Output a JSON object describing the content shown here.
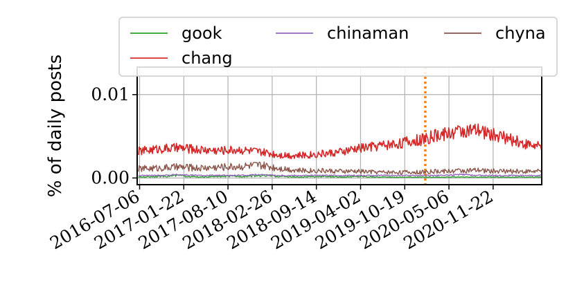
{
  "chart_data": {
    "type": "line",
    "title": "",
    "xlabel": "",
    "ylabel": "% of daily posts",
    "x_range": [
      "2016-06-25",
      "2021-06-30"
    ],
    "ylim": [
      -0.0008,
      0.0133
    ],
    "x_tick_labels": [
      "2016-07-06",
      "2017-01-22",
      "2017-08-10",
      "2018-02-26",
      "2018-09-14",
      "2019-04-02",
      "2019-10-19",
      "2020-05-06",
      "2020-11-22"
    ],
    "y_ticks": [
      0.0,
      0.01
    ],
    "y_tick_labels": [
      "0.00",
      "0.01"
    ],
    "grid": true,
    "legend_position": "top, above plot",
    "vertical_marker": {
      "x": "2020-01-20",
      "color": "#ff7f0e",
      "style": "dotted"
    },
    "series": [
      {
        "name": "gook",
        "color": "#2ca02c",
        "x": [
          "2016-07-01",
          "2016-10-01",
          "2017-01-01",
          "2017-04-01",
          "2017-07-01",
          "2017-10-01",
          "2018-01-01",
          "2018-04-01",
          "2018-07-01",
          "2018-10-01",
          "2019-01-01",
          "2019-04-01",
          "2019-07-01",
          "2019-10-01",
          "2020-01-01",
          "2020-04-01",
          "2020-07-01",
          "2020-10-01",
          "2021-01-01",
          "2021-04-01",
          "2021-06-30"
        ],
        "values": [
          0.0001,
          0.0002,
          0.0003,
          0.0001,
          0.0002,
          0.0002,
          0.0003,
          0.0002,
          0.0001,
          0.0002,
          0.0001,
          0.0002,
          0.0001,
          0.0001,
          0.0001,
          0.0001,
          0.0001,
          0.0001,
          0.0001,
          0.0001,
          0.0001
        ]
      },
      {
        "name": "chinaman",
        "color": "#9467bd",
        "x": [
          "2016-07-01",
          "2016-10-01",
          "2017-01-01",
          "2017-04-01",
          "2017-07-01",
          "2017-10-01",
          "2018-01-01",
          "2018-04-01",
          "2018-07-01",
          "2018-10-01",
          "2019-01-01",
          "2019-04-01",
          "2019-07-01",
          "2019-10-01",
          "2020-01-01",
          "2020-04-01",
          "2020-07-01",
          "2020-10-01",
          "2021-01-01",
          "2021-04-01",
          "2021-06-30"
        ],
        "values": [
          0.0003,
          0.0003,
          0.0004,
          0.0003,
          0.0003,
          0.0003,
          0.0004,
          0.0003,
          0.0003,
          0.0003,
          0.0003,
          0.0003,
          0.0003,
          0.0003,
          0.0003,
          0.0003,
          0.0004,
          0.0003,
          0.0003,
          0.0003,
          0.0003
        ]
      },
      {
        "name": "chyna",
        "color": "#8c564b",
        "x": [
          "2016-07-01",
          "2016-10-01",
          "2017-01-01",
          "2017-04-01",
          "2017-07-01",
          "2017-10-01",
          "2018-01-01",
          "2018-04-01",
          "2018-07-01",
          "2018-10-01",
          "2019-01-01",
          "2019-04-01",
          "2019-07-01",
          "2019-10-01",
          "2020-01-01",
          "2020-04-01",
          "2020-07-01",
          "2020-10-01",
          "2021-01-01",
          "2021-04-01",
          "2021-06-30"
        ],
        "values": [
          0.0011,
          0.0012,
          0.0013,
          0.0012,
          0.0013,
          0.0014,
          0.0015,
          0.0012,
          0.0009,
          0.0009,
          0.0008,
          0.0008,
          0.0007,
          0.0007,
          0.0007,
          0.0008,
          0.0009,
          0.0009,
          0.0008,
          0.0008,
          0.0008
        ]
      },
      {
        "name": "chang",
        "color": "#d62728",
        "x": [
          "2016-07-01",
          "2016-10-01",
          "2017-01-01",
          "2017-04-01",
          "2017-07-01",
          "2017-10-01",
          "2018-01-01",
          "2018-04-01",
          "2018-07-01",
          "2018-10-01",
          "2019-01-01",
          "2019-04-01",
          "2019-07-01",
          "2019-10-01",
          "2020-01-01",
          "2020-04-01",
          "2020-07-01",
          "2020-10-01",
          "2021-01-01",
          "2021-04-01",
          "2021-06-30"
        ],
        "values": [
          0.0032,
          0.0035,
          0.0036,
          0.0034,
          0.0033,
          0.0034,
          0.0031,
          0.0028,
          0.0027,
          0.0029,
          0.0031,
          0.0036,
          0.0039,
          0.0042,
          0.0046,
          0.0052,
          0.0057,
          0.0056,
          0.0049,
          0.0042,
          0.0037
        ]
      }
    ]
  }
}
